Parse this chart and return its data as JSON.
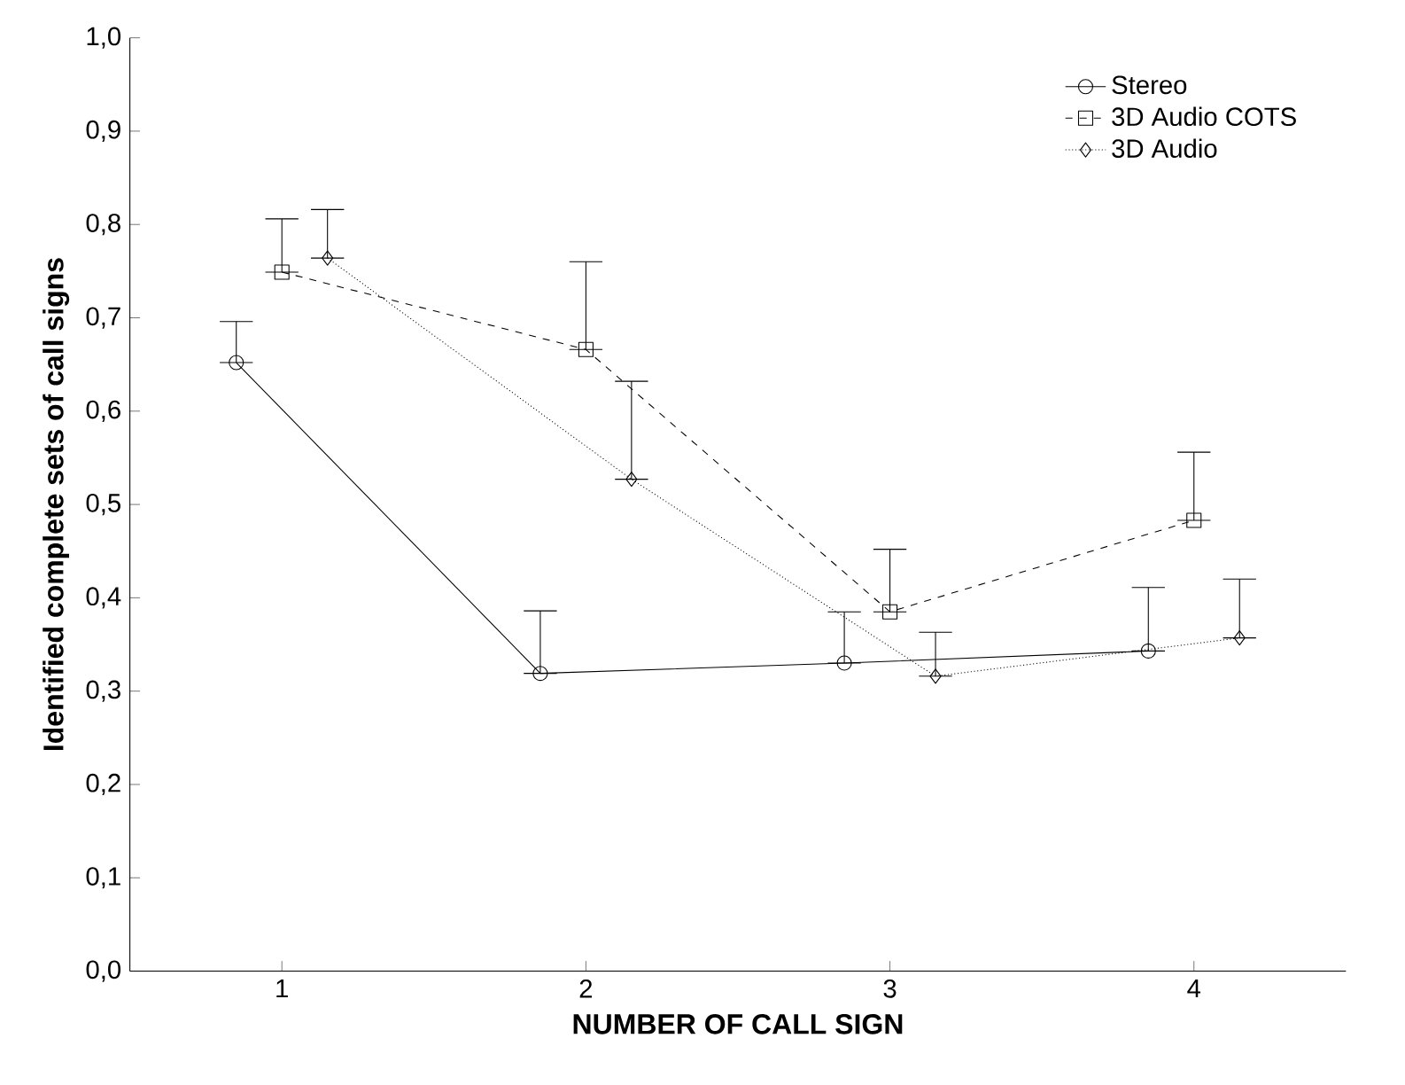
{
  "chart_data": {
    "type": "line",
    "xlabel": "NUMBER OF CALL SIGN",
    "ylabel": "Identified complete sets of call signs",
    "xlim": [
      0.5,
      4.5
    ],
    "xticks": [
      1,
      2,
      3,
      4
    ],
    "ylim": [
      0,
      1
    ],
    "yticks": [
      {
        "value": 0,
        "label": "0,0"
      },
      {
        "value": 0.1,
        "label": "0,1"
      },
      {
        "value": 0.2,
        "label": "0,2"
      },
      {
        "value": 0.3,
        "label": "0,3"
      },
      {
        "value": 0.4,
        "label": "0,4"
      },
      {
        "value": 0.5,
        "label": "0,5"
      },
      {
        "value": 0.6,
        "label": "0,6"
      },
      {
        "value": 0.7,
        "label": "0,7"
      },
      {
        "value": 0.8,
        "label": "0,8"
      },
      {
        "value": 0.9,
        "label": "0,9"
      },
      {
        "value": 1,
        "label": "1,0"
      }
    ],
    "legend": "top right",
    "grid": false,
    "series": [
      {
        "name": "Stereo",
        "color": "#000000",
        "marker": "circle",
        "line_style": "solid",
        "x": [
          0.85,
          1.85,
          2.85,
          3.85
        ],
        "values": [
          0.652,
          0.319,
          0.33,
          0.343
        ],
        "errors": [
          [
            0.652,
            0.696
          ],
          [
            0.319,
            0.386
          ],
          [
            0.33,
            0.385
          ],
          [
            0.343,
            0.411
          ]
        ]
      },
      {
        "name": "3D Audio COTS",
        "color": "#000000",
        "marker": "square",
        "line_style": "dashed",
        "x": [
          1,
          2,
          3,
          4
        ],
        "values": [
          0.749,
          0.666,
          0.385,
          0.483
        ],
        "errors": [
          [
            0.749,
            0.806
          ],
          [
            0.666,
            0.76
          ],
          [
            0.385,
            0.452
          ],
          [
            0.483,
            0.556
          ]
        ]
      },
      {
        "name": "3D Audio",
        "color": "#000000",
        "marker": "diamond",
        "line_style": "dotted",
        "x": [
          1.15,
          2.15,
          3.15,
          4.15
        ],
        "values": [
          0.764,
          0.527,
          0.316,
          0.357
        ],
        "errors": [
          [
            0.764,
            0.816
          ],
          [
            0.527,
            0.632
          ],
          [
            0.316,
            0.363
          ],
          [
            0.357,
            0.42
          ]
        ]
      }
    ]
  }
}
